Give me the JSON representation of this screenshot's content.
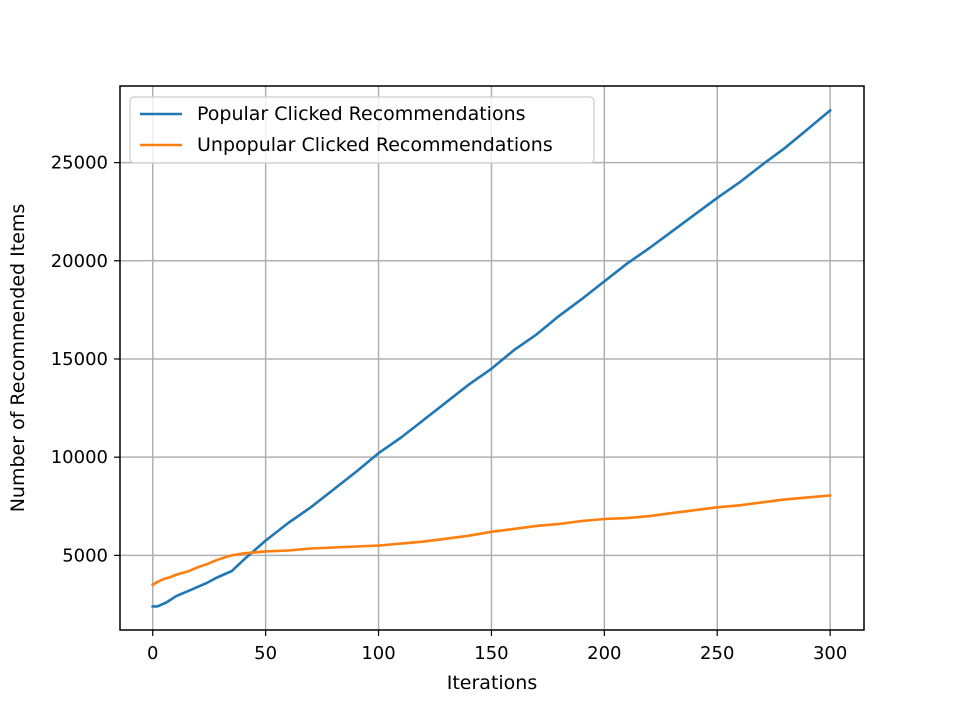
{
  "chart_data": {
    "type": "line",
    "title": "",
    "xlabel": "Iterations",
    "ylabel": "Number of Recommended Items",
    "xlim": [
      -14.5,
      315
    ],
    "ylim": [
      1200,
      28900
    ],
    "x_ticks": [
      0,
      50,
      100,
      150,
      200,
      250,
      300
    ],
    "y_ticks": [
      5000,
      10000,
      15000,
      20000,
      25000
    ],
    "grid": true,
    "legend_placement": "top-left",
    "series": [
      {
        "name": "Popular Clicked Recommendations",
        "color": "#1f77b4",
        "points": [
          [
            0,
            2400
          ],
          [
            2,
            2400
          ],
          [
            4,
            2500
          ],
          [
            6,
            2600
          ],
          [
            8,
            2750
          ],
          [
            10,
            2900
          ],
          [
            12,
            3000
          ],
          [
            15,
            3150
          ],
          [
            18,
            3300
          ],
          [
            20,
            3400
          ],
          [
            24,
            3600
          ],
          [
            28,
            3850
          ],
          [
            32,
            4050
          ],
          [
            35,
            4200
          ],
          [
            40,
            4750
          ],
          [
            45,
            5250
          ],
          [
            50,
            5750
          ],
          [
            60,
            6650
          ],
          [
            70,
            7450
          ],
          [
            80,
            8350
          ],
          [
            90,
            9250
          ],
          [
            100,
            10200
          ],
          [
            110,
            11000
          ],
          [
            120,
            11900
          ],
          [
            130,
            12800
          ],
          [
            140,
            13700
          ],
          [
            150,
            14500
          ],
          [
            160,
            15450
          ],
          [
            170,
            16250
          ],
          [
            180,
            17200
          ],
          [
            190,
            18050
          ],
          [
            200,
            18950
          ],
          [
            210,
            19850
          ],
          [
            220,
            20650
          ],
          [
            230,
            21500
          ],
          [
            240,
            22350
          ],
          [
            250,
            23200
          ],
          [
            260,
            24000
          ],
          [
            270,
            24900
          ],
          [
            280,
            25750
          ],
          [
            290,
            26700
          ],
          [
            300,
            27650
          ]
        ]
      },
      {
        "name": "Unpopular Clicked Recommendations",
        "color": "#ff7f0e",
        "points": [
          [
            0,
            3500
          ],
          [
            2,
            3650
          ],
          [
            5,
            3800
          ],
          [
            8,
            3900
          ],
          [
            10,
            4000
          ],
          [
            13,
            4100
          ],
          [
            16,
            4200
          ],
          [
            20,
            4400
          ],
          [
            24,
            4550
          ],
          [
            28,
            4750
          ],
          [
            32,
            4900
          ],
          [
            35,
            5000
          ],
          [
            40,
            5100
          ],
          [
            50,
            5200
          ],
          [
            60,
            5250
          ],
          [
            70,
            5350
          ],
          [
            80,
            5400
          ],
          [
            90,
            5450
          ],
          [
            100,
            5500
          ],
          [
            110,
            5600
          ],
          [
            120,
            5700
          ],
          [
            130,
            5850
          ],
          [
            140,
            6000
          ],
          [
            150,
            6200
          ],
          [
            160,
            6350
          ],
          [
            170,
            6500
          ],
          [
            180,
            6600
          ],
          [
            190,
            6750
          ],
          [
            200,
            6850
          ],
          [
            210,
            6900
          ],
          [
            220,
            7000
          ],
          [
            230,
            7150
          ],
          [
            240,
            7300
          ],
          [
            250,
            7450
          ],
          [
            260,
            7550
          ],
          [
            270,
            7700
          ],
          [
            280,
            7850
          ],
          [
            290,
            7950
          ],
          [
            300,
            8050
          ]
        ]
      }
    ]
  }
}
